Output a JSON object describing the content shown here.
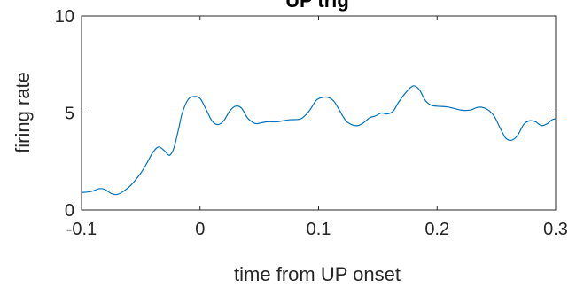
{
  "chart_data": {
    "type": "line",
    "title": "UP trig",
    "xlabel": "time from UP onset",
    "ylabel": "firing rate",
    "xlim": [
      -0.1,
      0.3
    ],
    "ylim": [
      0,
      10
    ],
    "xticks": [
      -0.1,
      0,
      0.1,
      0.2,
      0.3
    ],
    "xtick_labels": [
      "-0.1",
      "0",
      "0.1",
      "0.2",
      "0.3"
    ],
    "yticks": [
      0,
      5,
      10
    ],
    "ytick_labels": [
      "0",
      "5",
      "10"
    ],
    "grid": false,
    "box": true,
    "line_color": "#0072BD",
    "series": [
      {
        "x": [
          -0.1,
          -0.092,
          -0.085,
          -0.08,
          -0.075,
          -0.07,
          -0.065,
          -0.058,
          -0.05,
          -0.045,
          -0.04,
          -0.035,
          -0.03,
          -0.027,
          -0.025,
          -0.022,
          -0.018,
          -0.015,
          -0.01,
          -0.005,
          0.0,
          0.005,
          0.01,
          0.015,
          0.02,
          0.025,
          0.03,
          0.035,
          0.04,
          0.045,
          0.048,
          0.052,
          0.057,
          0.065,
          0.075,
          0.085,
          0.092,
          0.098,
          0.103,
          0.108,
          0.113,
          0.118,
          0.123,
          0.128,
          0.133,
          0.138,
          0.143,
          0.148,
          0.153,
          0.158,
          0.163,
          0.168,
          0.175,
          0.18,
          0.185,
          0.19,
          0.195,
          0.2,
          0.21,
          0.22,
          0.228,
          0.235,
          0.242,
          0.248,
          0.253,
          0.258,
          0.263,
          0.268,
          0.273,
          0.278,
          0.283,
          0.288,
          0.293,
          0.297,
          0.3
        ],
        "y": [
          0.9,
          0.95,
          1.1,
          1.05,
          0.85,
          0.8,
          0.95,
          1.3,
          1.9,
          2.4,
          2.95,
          3.25,
          3.05,
          2.85,
          2.85,
          3.2,
          4.2,
          5.0,
          5.7,
          5.85,
          5.75,
          5.2,
          4.6,
          4.4,
          4.6,
          5.1,
          5.35,
          5.25,
          4.75,
          4.5,
          4.45,
          4.5,
          4.55,
          4.55,
          4.65,
          4.7,
          5.1,
          5.65,
          5.8,
          5.8,
          5.6,
          5.1,
          4.6,
          4.4,
          4.35,
          4.5,
          4.75,
          4.85,
          5.0,
          4.95,
          5.1,
          5.6,
          6.15,
          6.4,
          6.2,
          5.65,
          5.4,
          5.35,
          5.3,
          5.15,
          5.15,
          5.3,
          5.2,
          4.85,
          4.25,
          3.7,
          3.6,
          3.85,
          4.4,
          4.6,
          4.55,
          4.35,
          4.45,
          4.65,
          4.7
        ]
      }
    ]
  }
}
